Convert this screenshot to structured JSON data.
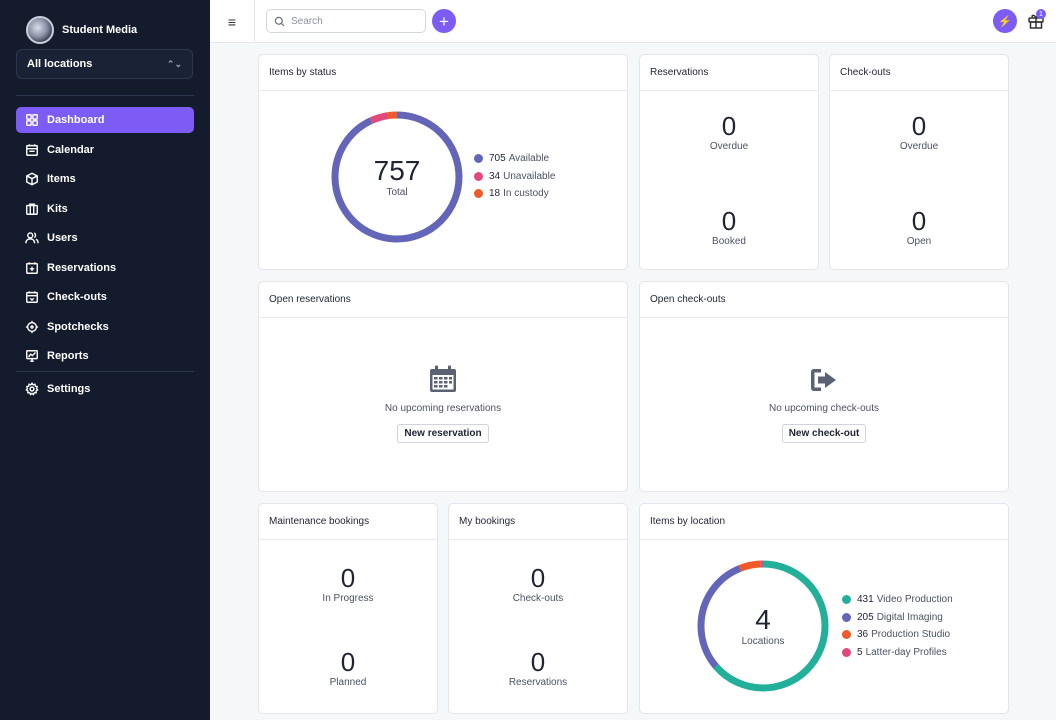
{
  "colors": {
    "accent": "#7c5cf5",
    "sidebar_bg": "#141b2d",
    "available": "#6366b8",
    "unavailable": "#e0497a",
    "in_custody": "#f05a28",
    "video_production": "#22b09a",
    "digital_imaging": "#6366b8",
    "production_studio": "#f05a28",
    "latter_day": "#e0497a"
  },
  "sidebar": {
    "org_name": "Student Media",
    "location_select": "All locations",
    "items": [
      {
        "label": "Dashboard",
        "icon": "dashboard-icon",
        "active": true
      },
      {
        "label": "Calendar",
        "icon": "calendar-icon"
      },
      {
        "label": "Items",
        "icon": "cube-icon"
      },
      {
        "label": "Kits",
        "icon": "kits-icon"
      },
      {
        "label": "Users",
        "icon": "users-icon"
      },
      {
        "label": "Reservations",
        "icon": "calendar-plus-icon"
      },
      {
        "label": "Check-outs",
        "icon": "calendar-out-icon"
      },
      {
        "label": "Spotchecks",
        "icon": "crosshair-icon"
      },
      {
        "label": "Reports",
        "icon": "chart-icon"
      }
    ],
    "settings_label": "Settings"
  },
  "topbar": {
    "search_placeholder": "Search",
    "gift_badge": "1"
  },
  "items_by_status": {
    "title": "Items by status",
    "total": "757",
    "total_label": "Total",
    "legend": [
      {
        "count": "705",
        "label": "Available"
      },
      {
        "count": "34",
        "label": "Unavailable"
      },
      {
        "count": "18",
        "label": "In custody"
      }
    ],
    "values": [
      705,
      34,
      18
    ]
  },
  "reservations": {
    "title": "Reservations",
    "overdue": "0",
    "overdue_label": "Overdue",
    "booked": "0",
    "booked_label": "Booked"
  },
  "checkouts": {
    "title": "Check-outs",
    "overdue": "0",
    "overdue_label": "Overdue",
    "open": "0",
    "open_label": "Open"
  },
  "open_reservations": {
    "title": "Open reservations",
    "message": "No upcoming reservations",
    "button": "New reservation"
  },
  "open_checkouts": {
    "title": "Open check-outs",
    "message": "No upcoming check-outs",
    "button": "New check-out"
  },
  "maintenance": {
    "title": "Maintenance bookings",
    "in_progress": "0",
    "in_progress_label": "In Progress",
    "planned": "0",
    "planned_label": "Planned"
  },
  "my_bookings": {
    "title": "My bookings",
    "checkouts": "0",
    "checkouts_label": "Check-outs",
    "reservations": "0",
    "reservations_label": "Reservations"
  },
  "items_by_location": {
    "title": "Items by location",
    "total": "4",
    "total_label": "Locations",
    "legend": [
      {
        "count": "431",
        "label": "Video Production"
      },
      {
        "count": "205",
        "label": "Digital Imaging"
      },
      {
        "count": "36",
        "label": "Production Studio"
      },
      {
        "count": "5",
        "label": "Latter-day Profiles"
      }
    ],
    "values": [
      431,
      205,
      36,
      5
    ]
  }
}
